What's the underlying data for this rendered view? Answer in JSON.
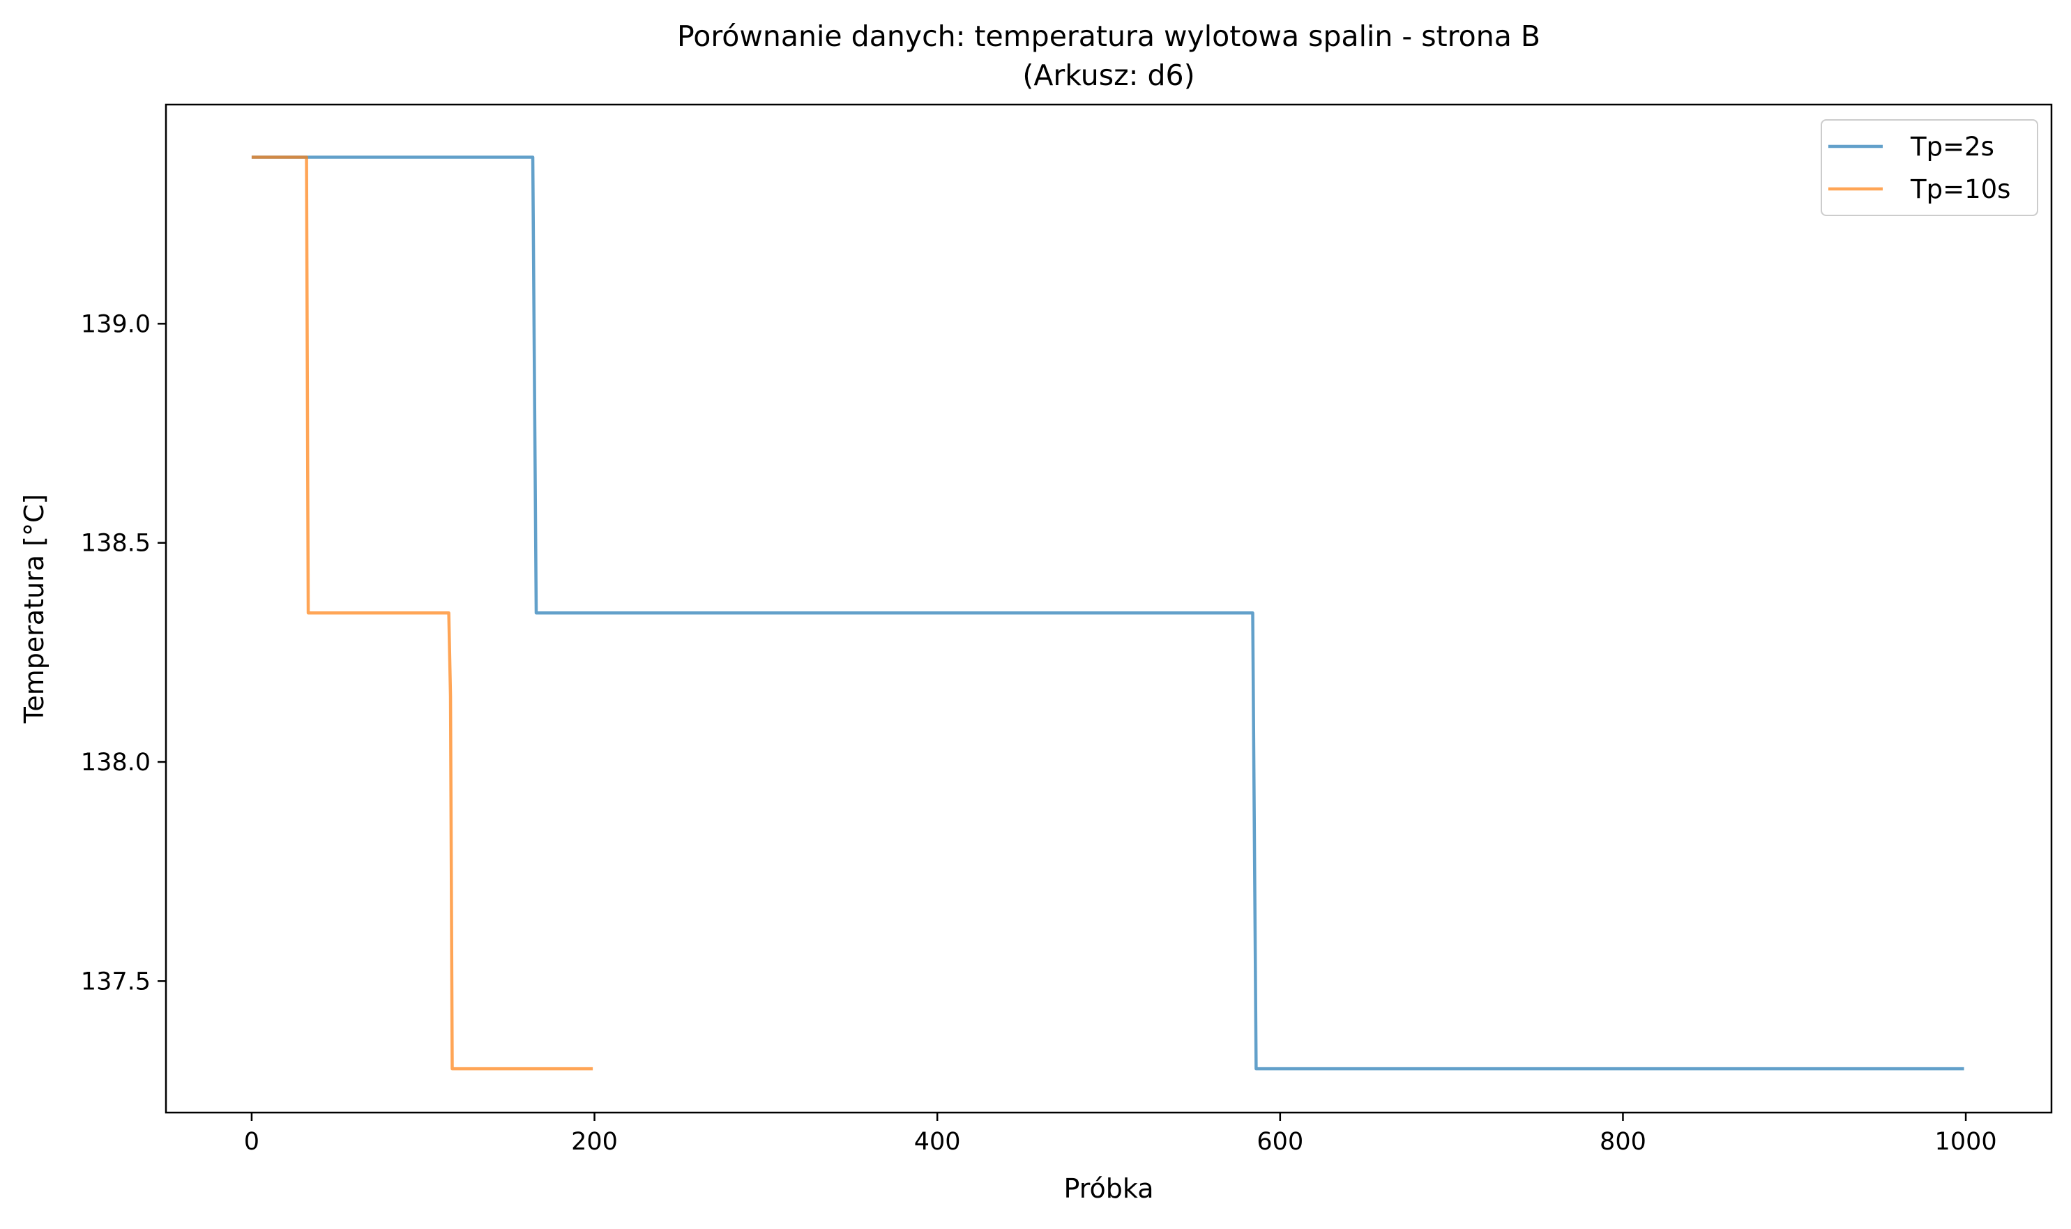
{
  "chart_data": {
    "type": "line",
    "title": "Porównanie danych: temperatura wylotowa spalin - strona B",
    "subtitle": "(Arkusz: d6)",
    "xlabel": "Próbka",
    "ylabel": "Temperatura [°C]",
    "xlim": [
      -50,
      1050
    ],
    "ylim": [
      137.2,
      139.5
    ],
    "xticks": [
      0,
      200,
      400,
      600,
      800,
      1000
    ],
    "xtick_labels": [
      "0",
      "200",
      "400",
      "600",
      "800",
      "1000"
    ],
    "yticks": [
      137.5,
      138.0,
      138.5,
      139.0
    ],
    "ytick_labels": [
      "137.5",
      "138.0",
      "138.5",
      "139.0"
    ],
    "grid": false,
    "legend_position": "top-right",
    "series": [
      {
        "name": "Tp=2s",
        "color": "#1f77b4",
        "x": [
          0,
          164,
          166,
          584,
          586,
          999
        ],
        "y": [
          139.38,
          139.38,
          138.34,
          138.34,
          137.3,
          137.3
        ]
      },
      {
        "name": "Tp=10s",
        "color": "#ff7f0e",
        "x": [
          0,
          32,
          33,
          115,
          116,
          117,
          199
        ],
        "y": [
          139.38,
          139.38,
          138.34,
          138.34,
          138.15,
          137.3,
          137.3
        ]
      }
    ]
  }
}
